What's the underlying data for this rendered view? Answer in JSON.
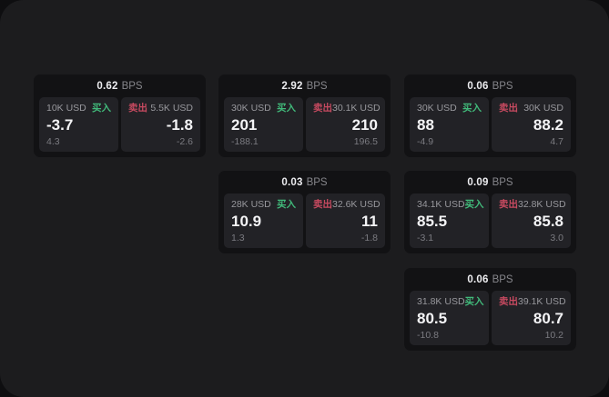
{
  "labels": {
    "bps_suffix": "BPS",
    "buy": "买入",
    "sell": "卖出"
  },
  "colors": {
    "outer_background": "#0e0e10",
    "window_background": "#1c1c1e",
    "card_background": "#121214",
    "panel_background": "#222226",
    "buy_green": "#41b97a",
    "sell_red": "#c74a60",
    "price_text": "#f4f4f6",
    "muted_text": "#98989d",
    "delta_text": "#7b7b81"
  },
  "cards": [
    {
      "bps": "0.62",
      "row": 1,
      "col": 1,
      "buy": {
        "size": "10K USD",
        "price": "-3.7",
        "delta": "4.3"
      },
      "sell": {
        "size": "5.5K USD",
        "price": "-1.8",
        "delta": "-2.6"
      }
    },
    {
      "bps": "2.92",
      "row": 1,
      "col": 2,
      "buy": {
        "size": "30K USD",
        "price": "201",
        "delta": "-188.1"
      },
      "sell": {
        "size": "30.1K USD",
        "price": "210",
        "delta": "196.5"
      }
    },
    {
      "bps": "0.06",
      "row": 1,
      "col": 3,
      "buy": {
        "size": "30K USD",
        "price": "88",
        "delta": "-4.9"
      },
      "sell": {
        "size": "30K USD",
        "price": "88.2",
        "delta": "4.7"
      }
    },
    {
      "bps": "0.03",
      "row": 2,
      "col": 2,
      "buy": {
        "size": "28K USD",
        "price": "10.9",
        "delta": "1.3"
      },
      "sell": {
        "size": "32.6K USD",
        "price": "11",
        "delta": "-1.8"
      }
    },
    {
      "bps": "0.09",
      "row": 2,
      "col": 3,
      "buy": {
        "size": "34.1K USD",
        "price": "85.5",
        "delta": "-3.1"
      },
      "sell": {
        "size": "32.8K USD",
        "price": "85.8",
        "delta": "3.0"
      }
    },
    {
      "bps": "0.06",
      "row": 3,
      "col": 3,
      "buy": {
        "size": "31.8K USD",
        "price": "80.5",
        "delta": "-10.8"
      },
      "sell": {
        "size": "39.1K USD",
        "price": "80.7",
        "delta": "10.2"
      }
    }
  ]
}
